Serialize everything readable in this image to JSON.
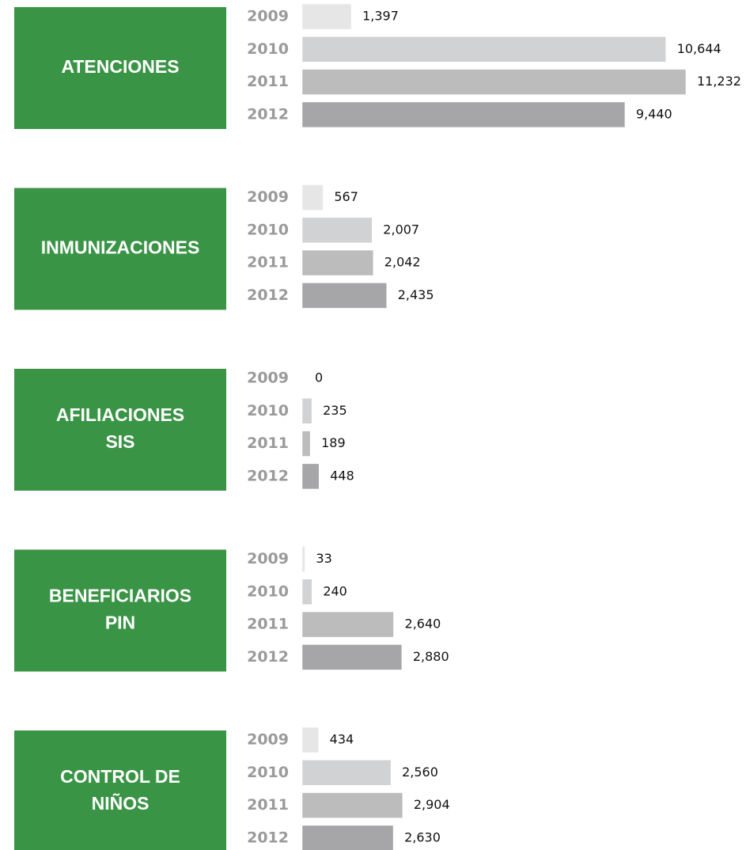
{
  "chart_data": [
    {
      "type": "bar",
      "orientation": "horizontal",
      "title": [
        "ATENCIONES"
      ],
      "categories": [
        "2009",
        "2010",
        "2011",
        "2012"
      ],
      "values": [
        1397,
        10644,
        11232,
        9440
      ],
      "value_labels": [
        "1,397",
        "10,644",
        "11,232",
        "9,440"
      ],
      "colors": [
        "#e6e6e7",
        "#d1d2d3",
        "#bcbcbd",
        "#a6a6a8"
      ],
      "box_color": "#3a9446",
      "xlim": [
        0,
        12000
      ]
    },
    {
      "type": "bar",
      "orientation": "horizontal",
      "title": [
        "INMUNIZACIONES"
      ],
      "categories": [
        "2009",
        "2010",
        "2011",
        "2012"
      ],
      "values": [
        567,
        2007,
        2042,
        2435
      ],
      "value_labels": [
        "567",
        "2,007",
        "2,042",
        "2,435"
      ],
      "colors": [
        "#e6e6e7",
        "#d1d2d3",
        "#bcbcbd",
        "#a6a6a8"
      ],
      "box_color": "#3a9446",
      "xlim": [
        0,
        12000
      ]
    },
    {
      "type": "bar",
      "orientation": "horizontal",
      "title": [
        "AFILIACIONES",
        "SIS"
      ],
      "categories": [
        "2009",
        "2010",
        "2011",
        "2012"
      ],
      "values": [
        0,
        235,
        189,
        448
      ],
      "colors": [
        "#e6e6e7",
        "#d1d2d3",
        "#bcbcbd",
        "#a6a6a8"
      ],
      "box_color": "#3a9446",
      "xlim": [
        0,
        12000
      ]
    },
    {
      "type": "bar",
      "orientation": "horizontal",
      "title": [
        "BENEFICIARIOS",
        "PIN"
      ],
      "categories": [
        "2009",
        "2010",
        "2011",
        "2012"
      ],
      "values": [
        33,
        240,
        2640,
        2880
      ],
      "value_labels": [
        "33",
        "240",
        "2,640",
        "2,880"
      ],
      "colors": [
        "#e6e6e7",
        "#d1d2d3",
        "#bcbcbd",
        "#a6a6a8"
      ],
      "box_color": "#3a9446",
      "xlim": [
        0,
        12000
      ]
    },
    {
      "type": "bar",
      "orientation": "horizontal",
      "title": [
        "CONTROL DE",
        "NIÑOS"
      ],
      "categories": [
        "2009",
        "2010",
        "2011",
        "2012"
      ],
      "values": [
        434,
        2560,
        2904,
        2630
      ],
      "value_labels": [
        "434",
        "2,560",
        "2,904",
        "2,630"
      ],
      "colors": [
        "#e6e6e7",
        "#d1d2d3",
        "#bcbcbd",
        "#a6a6a8"
      ],
      "box_color": "#3a9446",
      "xlim": [
        0,
        12000
      ]
    }
  ]
}
